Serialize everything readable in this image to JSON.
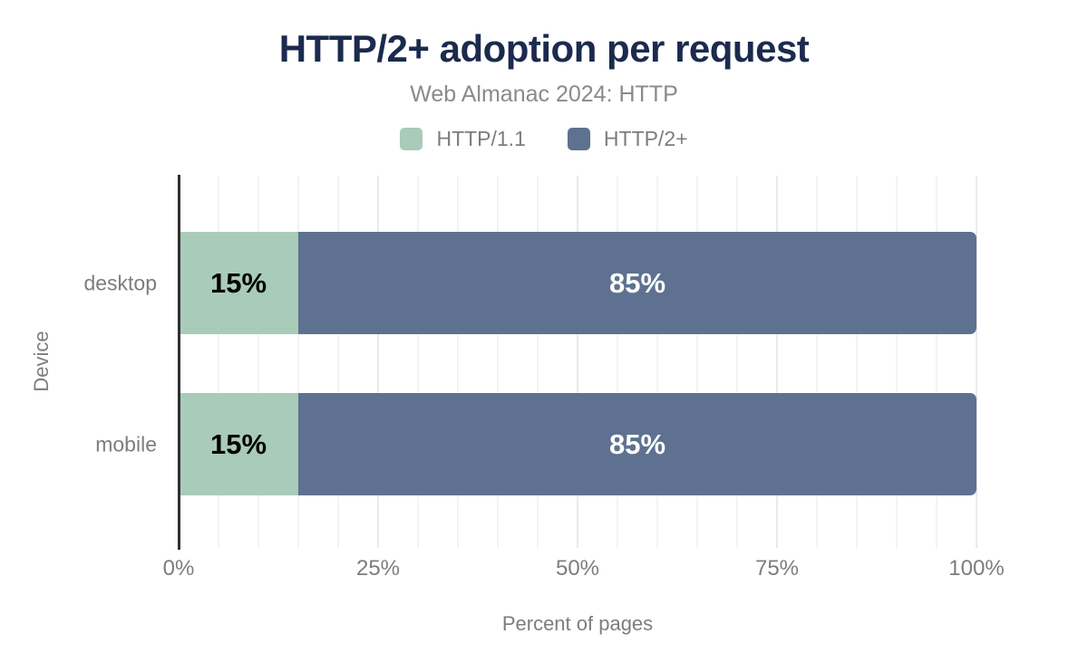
{
  "chart_data": {
    "type": "bar",
    "orientation": "horizontal",
    "stacked": true,
    "title": "HTTP/2+ adoption per request",
    "subtitle": "Web Almanac 2024: HTTP",
    "xlabel": "Percent of pages",
    "ylabel": "Device",
    "xlim": [
      0,
      100
    ],
    "grid": true,
    "minor_grid_step_percent": 5,
    "major_grid_step_percent": 25,
    "legend_position": "top",
    "categories": [
      "desktop",
      "mobile"
    ],
    "series": [
      {
        "name": "HTTP/1.1",
        "color": "#a9cbb9",
        "label_color": "#000000",
        "values": [
          15,
          15
        ]
      },
      {
        "name": "HTTP/2+",
        "color": "#5e7190",
        "label_color": "#ffffff",
        "values": [
          85,
          85
        ]
      }
    ],
    "bar_value_suffix": "%",
    "x_ticks": [
      {
        "label": "0%",
        "value": 0
      },
      {
        "label": "25%",
        "value": 25
      },
      {
        "label": "50%",
        "value": 50
      },
      {
        "label": "75%",
        "value": 75
      },
      {
        "label": "100%",
        "value": 100
      }
    ]
  },
  "colors": {
    "title": "#1b2a4e",
    "subtitle": "#8a8a8a",
    "axis_text": "#7d7d7d",
    "axis_line": "#2f2f2f",
    "gridline": "#f3f3f3",
    "gridline_major": "#eaeaea",
    "background": "#ffffff"
  }
}
